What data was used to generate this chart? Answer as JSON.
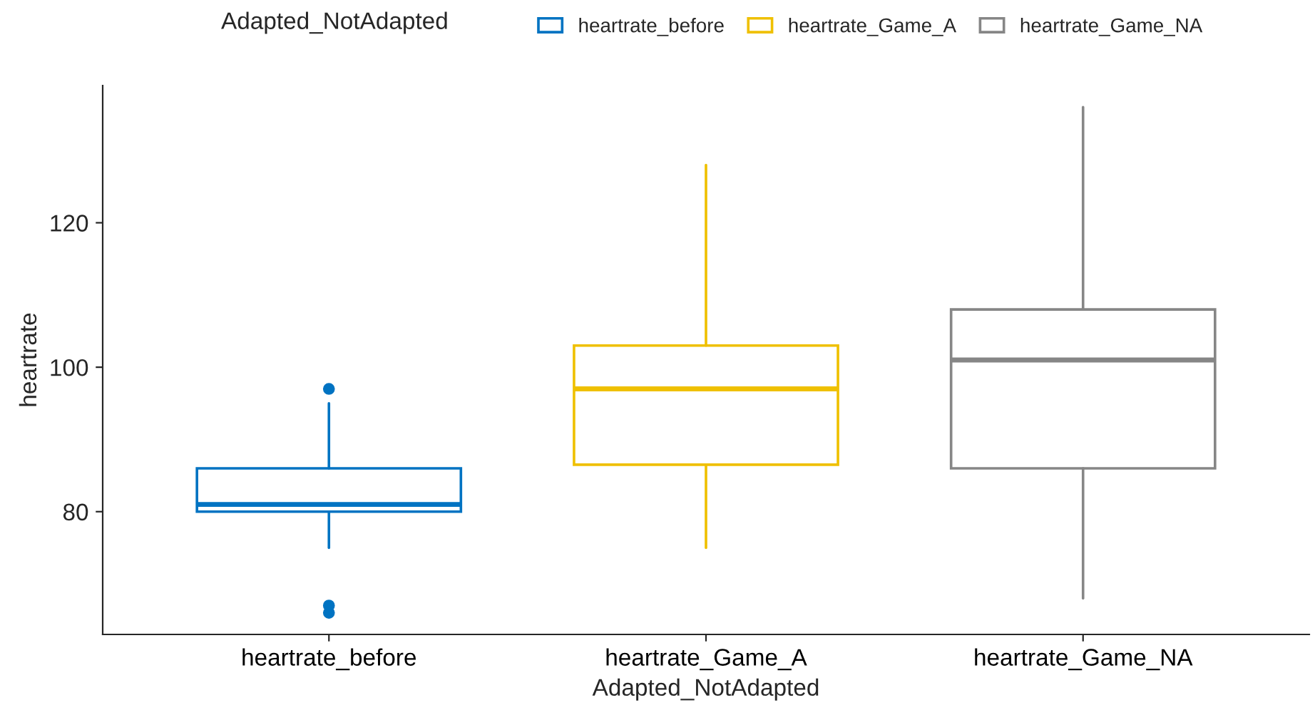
{
  "chart_data": {
    "type": "box",
    "xlabel": "Adapted_NotAdapted",
    "ylabel": "heartrate",
    "legend_title": "Adapted_NotAdapted",
    "categories": [
      "heartrate_before",
      "heartrate_Game_A",
      "heartrate_Game_NA"
    ],
    "series": [
      {
        "name": "heartrate_before",
        "color": "#0073c2",
        "boxes": [
          {
            "low": 75,
            "q1": 80,
            "median": 81,
            "q3": 86,
            "high": 95,
            "outliers": [
              97,
              67,
              66
            ]
          },
          null,
          null
        ]
      },
      {
        "name": "heartrate_Game_A",
        "color": "#efc000",
        "boxes": [
          null,
          {
            "low": 75,
            "q1": 86.5,
            "median": 97,
            "q3": 103,
            "high": 128
          },
          null
        ]
      },
      {
        "name": "heartrate_Game_NA",
        "color": "#868686",
        "boxes": [
          null,
          null,
          {
            "low": 68,
            "q1": 86,
            "median": 101,
            "q3": 108,
            "high": 136
          }
        ]
      }
    ],
    "ylim": [
      63,
      139
    ],
    "yticks": [
      80,
      100,
      120
    ],
    "grid": false,
    "legend": "top"
  }
}
